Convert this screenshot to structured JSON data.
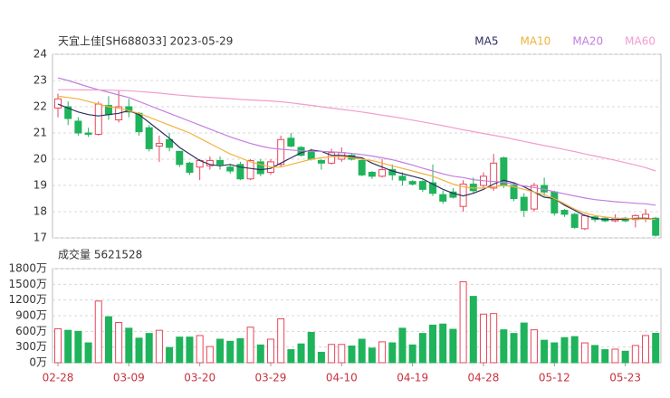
{
  "chart_data": [
    {
      "type": "candlestick",
      "title": "天宜上佳[SH688033] 2023-05-29",
      "open": [
        21.95,
        22.0,
        21.45,
        21.0,
        20.95,
        22.05,
        21.5,
        22.0,
        21.75,
        21.2,
        20.5,
        20.75,
        20.3,
        19.85,
        19.7,
        19.75,
        19.95,
        19.7,
        19.8,
        19.25,
        19.9,
        19.5,
        19.8,
        20.8,
        20.45,
        20.3,
        19.95,
        19.85,
        20.0,
        20.15,
        19.95,
        19.5,
        19.35,
        19.6,
        19.35,
        19.15,
        19.15,
        19.1,
        18.65,
        18.75,
        18.2,
        19.05,
        19.0,
        18.9,
        20.05,
        19.0,
        18.55,
        18.1,
        19.0,
        18.75,
        18.05,
        17.9,
        17.35,
        17.8,
        17.75,
        17.65,
        17.75,
        17.7,
        17.75,
        17.75
      ],
      "high": [
        22.5,
        22.2,
        21.6,
        21.2,
        22.2,
        22.4,
        22.6,
        22.3,
        21.8,
        21.3,
        20.9,
        21.0,
        20.3,
        19.9,
        20.0,
        20.1,
        20.1,
        19.8,
        19.9,
        20.0,
        20.0,
        20.0,
        20.9,
        21.0,
        20.5,
        20.4,
        20.0,
        20.4,
        20.45,
        20.2,
        20.0,
        19.55,
        20.0,
        19.8,
        19.5,
        19.2,
        19.2,
        19.8,
        18.8,
        18.9,
        19.2,
        19.3,
        19.5,
        20.2,
        20.1,
        19.1,
        18.7,
        19.1,
        19.3,
        18.8,
        18.1,
        17.95,
        17.9,
        17.85,
        17.8,
        17.9,
        17.8,
        17.9,
        18.1,
        17.8
      ],
      "low": [
        21.6,
        21.3,
        20.9,
        20.85,
        20.9,
        21.5,
        21.4,
        21.6,
        20.9,
        20.3,
        19.9,
        20.3,
        19.7,
        19.4,
        19.2,
        19.6,
        19.6,
        19.45,
        19.2,
        19.2,
        19.35,
        19.4,
        19.7,
        20.45,
        20.1,
        19.95,
        19.6,
        19.8,
        19.9,
        19.95,
        19.35,
        19.25,
        19.3,
        19.2,
        19.0,
        19.0,
        18.75,
        18.6,
        18.3,
        18.5,
        18.0,
        18.7,
        18.9,
        18.8,
        18.9,
        18.4,
        17.8,
        18.0,
        18.6,
        17.85,
        17.8,
        17.35,
        17.3,
        17.6,
        17.6,
        17.6,
        17.6,
        17.4,
        17.6,
        17.05
      ],
      "close": [
        22.3,
        21.55,
        21.0,
        20.95,
        22.1,
        21.7,
        22.0,
        21.8,
        21.05,
        20.4,
        20.6,
        20.45,
        19.8,
        19.5,
        19.95,
        19.95,
        19.8,
        19.55,
        19.25,
        19.95,
        19.45,
        19.9,
        20.75,
        20.5,
        20.15,
        20.0,
        19.85,
        20.25,
        20.25,
        20.0,
        19.4,
        19.35,
        19.6,
        19.4,
        19.2,
        19.05,
        18.85,
        18.7,
        18.4,
        18.55,
        19.05,
        18.8,
        19.35,
        19.85,
        19.0,
        18.5,
        18.05,
        19.0,
        18.75,
        17.95,
        17.9,
        17.4,
        17.85,
        17.7,
        17.65,
        17.75,
        17.65,
        17.85,
        17.9,
        17.1
      ],
      "up_color": "#e8455a",
      "down_color": "#1fb35b",
      "series": [
        {
          "name": "MA5",
          "color": "#2d2f5e",
          "values": [
            22.1,
            21.95,
            21.8,
            21.7,
            21.65,
            21.7,
            21.75,
            21.85,
            21.7,
            21.4,
            21.1,
            20.8,
            20.45,
            20.2,
            19.95,
            19.8,
            19.75,
            19.8,
            19.7,
            19.65,
            19.6,
            19.65,
            19.85,
            20.05,
            20.25,
            20.35,
            20.3,
            20.15,
            20.15,
            20.1,
            20.05,
            19.85,
            19.7,
            19.55,
            19.45,
            19.35,
            19.25,
            19.05,
            18.85,
            18.7,
            18.6,
            18.7,
            18.85,
            19.05,
            19.2,
            19.1,
            18.95,
            18.75,
            18.55,
            18.5,
            18.25,
            18.05,
            17.85,
            17.75,
            17.7,
            17.7,
            17.72,
            17.75,
            17.75,
            17.7
          ]
        },
        {
          "name": "MA10",
          "color": "#f2b13c",
          "values": [
            22.4,
            22.35,
            22.3,
            22.2,
            22.1,
            22.0,
            21.95,
            21.85,
            21.75,
            21.6,
            21.45,
            21.3,
            21.15,
            21.0,
            20.8,
            20.6,
            20.4,
            20.2,
            20.05,
            19.9,
            19.8,
            19.7,
            19.7,
            19.8,
            19.9,
            20.0,
            20.05,
            20.1,
            20.1,
            20.05,
            20.0,
            19.95,
            19.85,
            19.75,
            19.65,
            19.55,
            19.45,
            19.35,
            19.2,
            19.05,
            18.95,
            18.9,
            18.9,
            18.95,
            19.0,
            18.95,
            18.85,
            18.75,
            18.65,
            18.5,
            18.3,
            18.1,
            17.95,
            17.85,
            17.8,
            17.75,
            17.75,
            17.72,
            17.72,
            17.7
          ]
        },
        {
          "name": "MA20",
          "color": "#c27ee0",
          "values": [
            23.1,
            23.0,
            22.88,
            22.76,
            22.65,
            22.55,
            22.45,
            22.35,
            22.2,
            22.05,
            21.9,
            21.75,
            21.6,
            21.45,
            21.3,
            21.15,
            21.0,
            20.85,
            20.72,
            20.6,
            20.5,
            20.42,
            20.38,
            20.35,
            20.32,
            20.3,
            20.3,
            20.28,
            20.26,
            20.22,
            20.18,
            20.12,
            20.05,
            19.98,
            19.88,
            19.78,
            19.66,
            19.55,
            19.44,
            19.35,
            19.3,
            19.22,
            19.18,
            19.15,
            19.12,
            19.05,
            18.98,
            18.92,
            18.85,
            18.76,
            18.68,
            18.6,
            18.52,
            18.46,
            18.42,
            18.38,
            18.35,
            18.32,
            18.3,
            18.25
          ]
        },
        {
          "name": "MA60",
          "color": "#f29ccf",
          "values": [
            22.65,
            22.65,
            22.64,
            22.64,
            22.64,
            22.63,
            22.62,
            22.61,
            22.58,
            22.55,
            22.52,
            22.48,
            22.44,
            22.41,
            22.38,
            22.36,
            22.33,
            22.31,
            22.28,
            22.26,
            22.24,
            22.22,
            22.19,
            22.15,
            22.1,
            22.05,
            22.0,
            21.95,
            21.9,
            21.85,
            21.8,
            21.74,
            21.68,
            21.62,
            21.56,
            21.49,
            21.42,
            21.35,
            21.28,
            21.2,
            21.12,
            21.05,
            20.98,
            20.91,
            20.84,
            20.76,
            20.68,
            20.6,
            20.52,
            20.45,
            20.37,
            20.29,
            20.2,
            20.12,
            20.04,
            19.96,
            19.87,
            19.78,
            19.68,
            19.55
          ]
        }
      ],
      "ylim": [
        17,
        24
      ],
      "yticks": [
        17,
        18,
        19,
        20,
        21,
        22,
        23,
        24
      ],
      "grid": true
    },
    {
      "type": "bar",
      "title": "成交量 5621528",
      "categories": [
        "02-28",
        null,
        null,
        null,
        null,
        null,
        null,
        "03-09",
        null,
        null,
        null,
        null,
        null,
        null,
        "03-20",
        null,
        null,
        null,
        null,
        null,
        null,
        "03-29",
        null,
        null,
        null,
        null,
        null,
        null,
        "04-10",
        null,
        null,
        null,
        null,
        null,
        null,
        "04-19",
        null,
        null,
        null,
        null,
        null,
        null,
        "04-28",
        null,
        null,
        null,
        null,
        null,
        null,
        "05-12",
        null,
        null,
        null,
        null,
        null,
        null,
        "05-23",
        null,
        null,
        null
      ],
      "values": [
        650,
        620,
        600,
        380,
        1180,
        880,
        770,
        660,
        470,
        560,
        620,
        290,
        490,
        490,
        520,
        310,
        450,
        410,
        460,
        680,
        340,
        450,
        840,
        250,
        360,
        580,
        200,
        350,
        350,
        320,
        450,
        280,
        400,
        380,
        660,
        340,
        560,
        720,
        740,
        640,
        1550,
        1270,
        930,
        940,
        630,
        560,
        760,
        630,
        430,
        380,
        480,
        500,
        380,
        330,
        250,
        260,
        220,
        330,
        520,
        562.15
      ],
      "ylim": [
        0,
        1800
      ],
      "yticks": [
        {
          "value": 0,
          "label": "0万"
        },
        {
          "value": 300,
          "label": "300万"
        },
        {
          "value": 600,
          "label": "600万"
        },
        {
          "value": 900,
          "label": "900万"
        },
        {
          "value": 1200,
          "label": "1200万"
        },
        {
          "value": 1500,
          "label": "1500万"
        },
        {
          "value": 1800,
          "label": "1800万"
        }
      ],
      "grid": true
    }
  ]
}
